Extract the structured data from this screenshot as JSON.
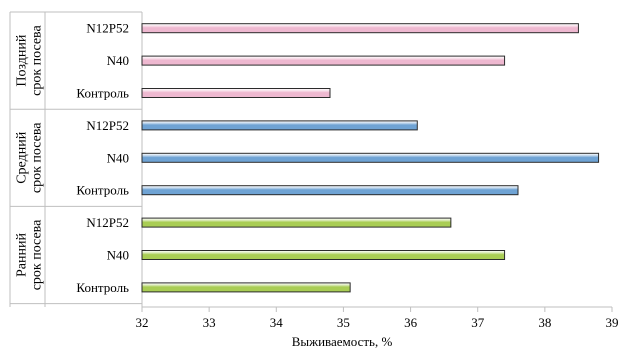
{
  "chart_data": {
    "type": "bar",
    "orientation": "horizontal",
    "xlabel": "Выживаемость, %",
    "xlim": [
      32,
      39
    ],
    "xticks": [
      "32",
      "33",
      "34",
      "35",
      "36",
      "37",
      "38",
      "39"
    ],
    "grid": false,
    "groups": [
      {
        "label": [
          "Поздний",
          "срок посева"
        ],
        "color": "#eeb8d0",
        "bars": [
          {
            "category": "N12P52",
            "value": 38.5
          },
          {
            "category": "N40",
            "value": 37.4
          },
          {
            "category": "Контроль",
            "value": 34.8
          }
        ]
      },
      {
        "label": [
          "Средний",
          "срок посева"
        ],
        "color": "#6fa3d4",
        "bars": [
          {
            "category": "N12P52",
            "value": 36.1
          },
          {
            "category": "N40",
            "value": 38.8
          },
          {
            "category": "Контроль",
            "value": 37.6
          }
        ]
      },
      {
        "label": [
          "Ранний",
          "срок посева"
        ],
        "color": "#a9cd54",
        "bars": [
          {
            "category": "N12P52",
            "value": 36.6
          },
          {
            "category": "N40",
            "value": 37.4
          },
          {
            "category": "Контроль",
            "value": 35.1
          }
        ]
      }
    ]
  }
}
